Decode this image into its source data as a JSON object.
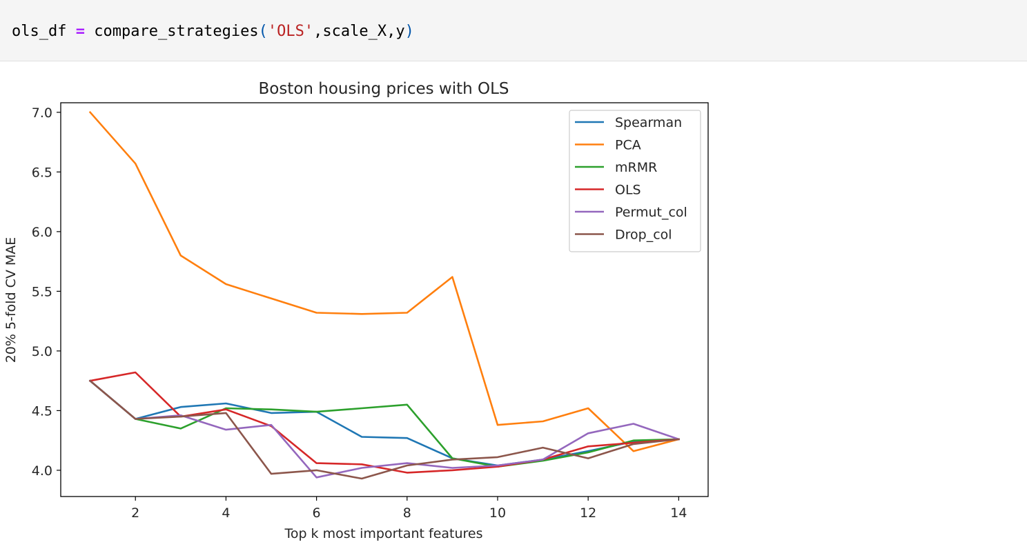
{
  "code_cell": {
    "var": "ols_df",
    "op": "=",
    "func": "compare_strategies",
    "open_paren": "(",
    "arg_str": "'OLS'",
    "comma1": ",",
    "arg2": "scale_X",
    "comma2": ",",
    "arg3": "y",
    "close_paren": ")"
  },
  "chart_data": {
    "type": "line",
    "title": "Boston housing prices with OLS",
    "xlabel": "Top k most important features",
    "ylabel": "20% 5-fold CV MAE",
    "xlim": [
      0.35,
      14.65
    ],
    "ylim": [
      3.78,
      7.08
    ],
    "xticks": [
      2,
      4,
      6,
      8,
      10,
      12,
      14
    ],
    "yticks": [
      4.0,
      4.5,
      5.0,
      5.5,
      6.0,
      6.5,
      7.0
    ],
    "x": [
      1,
      2,
      3,
      4,
      5,
      6,
      7,
      8,
      9,
      10,
      11,
      12,
      13,
      14
    ],
    "legend_position": "top-right",
    "grid": false,
    "series": [
      {
        "name": "Spearman",
        "color": "#1f77b4",
        "values": [
          4.75,
          4.43,
          4.53,
          4.56,
          4.48,
          4.49,
          4.28,
          4.27,
          4.1,
          4.04,
          4.09,
          4.16,
          4.24,
          4.26
        ]
      },
      {
        "name": "PCA",
        "color": "#ff7f0e",
        "values": [
          7.0,
          6.57,
          5.8,
          5.56,
          5.44,
          5.32,
          5.31,
          5.32,
          5.62,
          4.38,
          4.41,
          4.52,
          4.16,
          4.26
        ]
      },
      {
        "name": "mRMR",
        "color": "#2ca02c",
        "values": [
          4.75,
          4.43,
          4.35,
          4.52,
          4.51,
          4.49,
          4.52,
          4.55,
          4.1,
          4.03,
          4.08,
          4.15,
          4.25,
          4.26
        ]
      },
      {
        "name": "OLS",
        "color": "#d62728",
        "values": [
          4.75,
          4.82,
          4.45,
          4.51,
          4.37,
          4.06,
          4.05,
          3.98,
          4.0,
          4.03,
          4.09,
          4.2,
          4.23,
          4.26
        ]
      },
      {
        "name": "Permut_col",
        "color": "#9467bd",
        "values": [
          4.75,
          4.43,
          4.46,
          4.34,
          4.38,
          3.94,
          4.02,
          4.06,
          4.02,
          4.04,
          4.09,
          4.31,
          4.39,
          4.26
        ]
      },
      {
        "name": "Drop_col",
        "color": "#8c564b",
        "values": [
          4.75,
          4.43,
          4.45,
          4.48,
          3.97,
          4.0,
          3.93,
          4.04,
          4.09,
          4.11,
          4.19,
          4.1,
          4.22,
          4.26
        ]
      }
    ]
  }
}
